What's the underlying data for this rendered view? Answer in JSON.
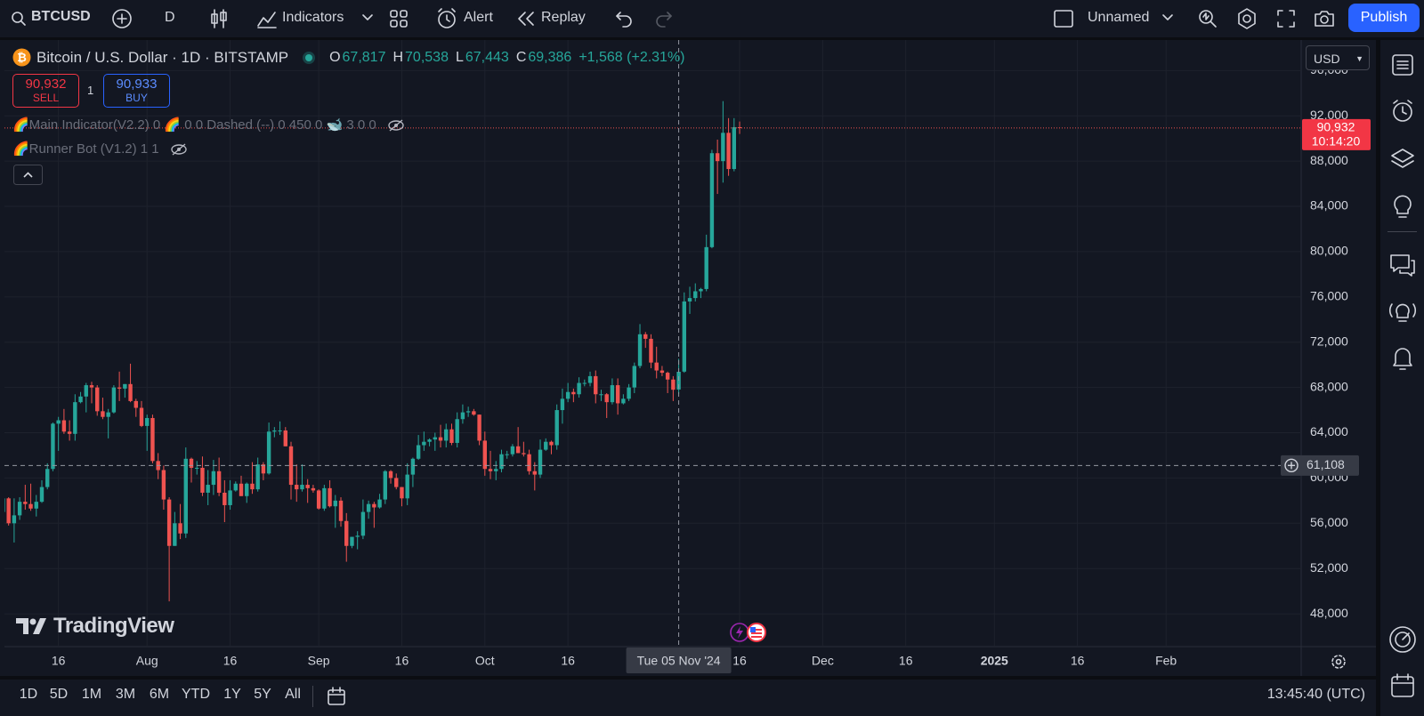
{
  "toolbar": {
    "symbol": "BTCUSD",
    "interval": "D",
    "indicators": "Indicators",
    "alert": "Alert",
    "replay": "Replay",
    "layout": "Unnamed",
    "publish": "Publish"
  },
  "legend": {
    "title": "Bitcoin / U.S. Dollar · 1D · BITSTAMP",
    "o_label": "O",
    "o": "67,817",
    "h_label": "H",
    "h": "70,538",
    "l_label": "L",
    "l": "67,443",
    "c_label": "C",
    "c": "69,386",
    "change": "+1,568 (+2.31%)"
  },
  "trade": {
    "sell_price": "90,932",
    "sell": "SELL",
    "quantity": "1",
    "buy_price": "90,933",
    "buy": "BUY"
  },
  "indicators": [
    "🌈Main Indicator(V2.2) 0 🌈 0 0 Dashed (--) 0 450 0 🐋 3 0 0",
    "🌈Runner Bot (V1.2) 1 1"
  ],
  "currency": "USD",
  "watermark": "TradingView",
  "chart_data": {
    "type": "candlestick",
    "up_color": "#26a69a",
    "down_color": "#ef5350",
    "grid": true,
    "open": [
      57000,
      58200,
      56000,
      56700,
      57900,
      57700,
      57300,
      57900,
      59200,
      60800,
      64800,
      65100,
      64100,
      63900,
      66700,
      67200,
      68200,
      68000,
      65900,
      65400,
      65800,
      68000,
      67900,
      68300,
      66800,
      66200,
      64600,
      65300,
      61500,
      60700,
      58100,
      54000,
      56000,
      55100,
      61700,
      60900,
      60900,
      58700,
      59400,
      60600,
      58700,
      57600,
      58900,
      59500,
      58400,
      59500,
      59000,
      61200,
      60400,
      64100,
      64200,
      64200,
      62800,
      59400,
      59000,
      59400,
      59100,
      58900,
      57300,
      59100,
      57500,
      58000,
      56200,
      54000,
      54800,
      54900,
      57000,
      57700,
      57400,
      58100,
      60600,
      60000,
      59200,
      58200,
      60300,
      61700,
      62900,
      63200,
      63400,
      63600,
      63300,
      64300,
      63100,
      65200,
      65800,
      65900,
      65600,
      63300,
      60800,
      60600,
      60800,
      62100,
      62100,
      62800,
      62200,
      62100,
      60600,
      60300,
      62500,
      63200,
      62900,
      66000,
      67000,
      67600,
      67400,
      68400,
      68400,
      69000,
      67400,
      67400,
      66700,
      68200,
      66600,
      67000,
      68000,
      69900,
      72700,
      72300,
      70200,
      69500,
      69300,
      68700,
      67817,
      69400,
      75600,
      75900,
      76500,
      76700,
      80400,
      88700,
      88000,
      90500,
      87300,
      91000
    ],
    "high": [
      58500,
      58300,
      58200,
      58300,
      59400,
      59500,
      58500,
      59800,
      61300,
      64900,
      65400,
      66100,
      65100,
      67400,
      67600,
      68400,
      68500,
      68200,
      67100,
      66100,
      68200,
      69400,
      68300,
      70100,
      67000,
      66800,
      65600,
      65600,
      62200,
      61100,
      58300,
      57000,
      57700,
      62700,
      61800,
      61500,
      61900,
      60700,
      61600,
      61800,
      59800,
      59800,
      59700,
      60200,
      59600,
      61400,
      61800,
      61400,
      64900,
      64500,
      65000,
      64500,
      63200,
      61200,
      61200,
      59900,
      59400,
      59000,
      59400,
      59800,
      58500,
      58300,
      56900,
      54800,
      55300,
      58100,
      58000,
      57900,
      58600,
      60700,
      60700,
      60400,
      59200,
      61300,
      61800,
      63800,
      64100,
      63500,
      64000,
      64700,
      64800,
      64800,
      65800,
      66500,
      66300,
      66100,
      65600,
      64100,
      62400,
      61500,
      62500,
      62400,
      63000,
      64500,
      63200,
      62500,
      61400,
      63400,
      63500,
      63300,
      66500,
      67900,
      68400,
      67900,
      68900,
      68700,
      69400,
      69500,
      67800,
      67500,
      68800,
      68800,
      67400,
      68300,
      70200,
      73600,
      72900,
      72700,
      71600,
      69900,
      69400,
      69000,
      70538,
      76400,
      76900,
      77200,
      76800,
      81500,
      89000,
      89900,
      93300,
      91800,
      91800,
      91500
    ],
    "low": [
      56600,
      55800,
      54300,
      56300,
      57200,
      57100,
      56600,
      57800,
      59000,
      60600,
      62400,
      63900,
      63300,
      63300,
      66600,
      65800,
      66600,
      65500,
      65200,
      63500,
      65700,
      66800,
      67100,
      66700,
      65400,
      64500,
      62400,
      61300,
      59900,
      57200,
      49100,
      54000,
      54600,
      54700,
      59600,
      60300,
      58400,
      57600,
      58500,
      58400,
      56100,
      57200,
      58800,
      58400,
      57800,
      58600,
      58800,
      59800,
      60300,
      63600,
      63800,
      62800,
      58100,
      57900,
      58800,
      57800,
      58700,
      57200,
      57100,
      57400,
      55600,
      55700,
      52600,
      53800,
      53700,
      54600,
      56400,
      55600,
      57300,
      57700,
      59500,
      59000,
      57500,
      57600,
      59200,
      61600,
      62400,
      62800,
      62400,
      62700,
      62700,
      62900,
      62700,
      64800,
      65400,
      65500,
      62900,
      60200,
      59900,
      59800,
      60500,
      61700,
      61900,
      62200,
      61900,
      60300,
      58900,
      60000,
      62400,
      62100,
      62500,
      64800,
      66700,
      66700,
      67100,
      68100,
      68100,
      66600,
      66800,
      65300,
      66500,
      65600,
      66500,
      66800,
      67500,
      69700,
      71500,
      69700,
      68800,
      69000,
      67500,
      66800,
      67443,
      69300,
      74500,
      75600,
      75900,
      76500,
      80300,
      85100,
      86100,
      86700,
      87100,
      90400
    ],
    "close": [
      58200,
      56000,
      56700,
      57900,
      57700,
      57300,
      57900,
      59200,
      60800,
      64800,
      65100,
      64100,
      63900,
      66700,
      67200,
      68200,
      68000,
      65900,
      65400,
      65800,
      68000,
      67900,
      68300,
      66800,
      66200,
      64600,
      65300,
      61500,
      60700,
      58100,
      54000,
      56000,
      55100,
      61700,
      60900,
      60900,
      58700,
      59400,
      60600,
      58700,
      57600,
      58900,
      59500,
      58400,
      59500,
      59000,
      61200,
      60400,
      64100,
      64200,
      64200,
      62800,
      59400,
      59000,
      59400,
      59100,
      58900,
      57300,
      59100,
      57500,
      58000,
      56200,
      54000,
      54800,
      54900,
      57000,
      57700,
      57400,
      58100,
      60600,
      60000,
      59200,
      58200,
      60300,
      61700,
      62900,
      63200,
      63400,
      63600,
      63300,
      64300,
      63100,
      65200,
      65800,
      65900,
      65600,
      63300,
      60800,
      60600,
      60800,
      62100,
      62100,
      62800,
      62200,
      62100,
      60600,
      60300,
      62500,
      63200,
      62900,
      66000,
      67000,
      67600,
      67400,
      68400,
      68400,
      69000,
      67400,
      67400,
      66700,
      68200,
      66600,
      67000,
      68000,
      69900,
      72700,
      72300,
      70200,
      69500,
      69300,
      68700,
      67800,
      69386,
      75600,
      75900,
      76500,
      76700,
      80400,
      88700,
      88000,
      90500,
      87300,
      91000,
      90932
    ],
    "xlim": [
      0.25,
      234.4
    ],
    "xticks": [
      {
        "value": 10,
        "label": "16"
      },
      {
        "value": 26,
        "label": "Aug"
      },
      {
        "value": 41,
        "label": "16"
      },
      {
        "value": 57,
        "label": "Sep"
      },
      {
        "value": 72,
        "label": "16"
      },
      {
        "value": 87,
        "label": "Oct"
      },
      {
        "value": 102,
        "label": "16"
      },
      {
        "value": 133,
        "label": "16"
      },
      {
        "value": 148,
        "label": "Dec"
      },
      {
        "value": 163,
        "label": "16"
      },
      {
        "value": 179,
        "label": "2025"
      },
      {
        "value": 194,
        "label": "16"
      },
      {
        "value": 210,
        "label": "Feb"
      }
    ],
    "ylim": [
      45100,
      98700
    ],
    "yticks": [
      {
        "value": 48000,
        "label": "48,000"
      },
      {
        "value": 52000,
        "label": "52,000"
      },
      {
        "value": 56000,
        "label": "56,000"
      },
      {
        "value": 60000,
        "label": "60,000"
      },
      {
        "value": 64000,
        "label": "64,000"
      },
      {
        "value": 68000,
        "label": "68,000"
      },
      {
        "value": 72000,
        "label": "72,000"
      },
      {
        "value": 76000,
        "label": "76,000"
      },
      {
        "value": 80000,
        "label": "80,000"
      },
      {
        "value": 84000,
        "label": "84,000"
      },
      {
        "value": 88000,
        "label": "88,000"
      },
      {
        "value": 92000,
        "label": "92,000"
      },
      {
        "value": 96000,
        "label": "96,000"
      }
    ],
    "last_price_label": "90,932",
    "countdown": "10:14:20",
    "crosshair": {
      "x": 122,
      "x_label": "Tue 05 Nov '24",
      "y": 61108,
      "y_label": "61,108"
    }
  },
  "ranges": [
    "1D",
    "5D",
    "1M",
    "3M",
    "6M",
    "YTD",
    "1Y",
    "5Y",
    "All"
  ],
  "clock": "13:45:40 (UTC)"
}
